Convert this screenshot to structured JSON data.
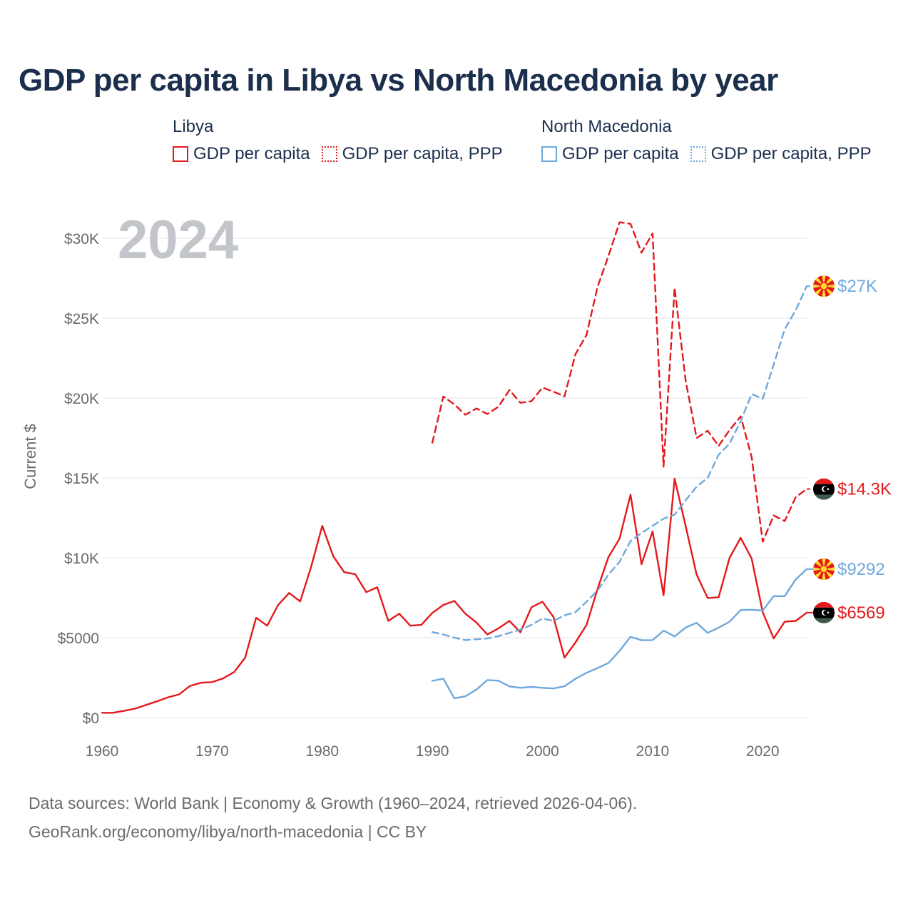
{
  "title": "GDP per capita in Libya vs North Macedonia by year",
  "legend": {
    "groups": [
      {
        "name": "Libya",
        "color": "#e4191c",
        "items": [
          {
            "label": "GDP per capita",
            "style": "solid"
          },
          {
            "label": "GDP per capita, PPP",
            "style": "dotted"
          }
        ]
      },
      {
        "name": "North Macedonia",
        "color": "#6fa8dc",
        "items": [
          {
            "label": "GDP per capita",
            "style": "solid"
          },
          {
            "label": "GDP per capita, PPP",
            "style": "dotted"
          }
        ]
      }
    ]
  },
  "footer": {
    "line1": "Data sources: World Bank | Economy & Growth (1960–2024, retrieved 2026-04-06).",
    "line2": "GeoRank.org/economy/libya/north-macedonia | CC BY"
  },
  "chart_data": {
    "type": "line",
    "title": "GDP per capita in Libya vs North Macedonia by year",
    "year_label": "2024",
    "xlabel": "",
    "ylabel": "Current $",
    "xlim": [
      1960,
      2024
    ],
    "ylim": [
      0,
      30000
    ],
    "x_ticks": [
      1960,
      1970,
      1980,
      1990,
      2000,
      2010,
      2020
    ],
    "x_tick_labels": [
      "1960",
      "1970",
      "1980",
      "1990",
      "2000",
      "2010",
      "2020"
    ],
    "y_ticks": [
      0,
      5000,
      10000,
      15000,
      20000,
      25000,
      30000
    ],
    "y_tick_labels": [
      "$0",
      "$5000",
      "$10K",
      "$15K",
      "$20K",
      "$25K",
      "$30K"
    ],
    "grid": true,
    "series": [
      {
        "name": "Libya GDP per capita",
        "color": "#e4191c",
        "dashed": false,
        "end_label": "$6569",
        "flag": "libya",
        "x": [
          1960,
          1961,
          1962,
          1963,
          1964,
          1965,
          1966,
          1967,
          1968,
          1969,
          1970,
          1971,
          1972,
          1973,
          1974,
          1975,
          1976,
          1977,
          1978,
          1979,
          1980,
          1981,
          1982,
          1983,
          1984,
          1985,
          1986,
          1987,
          1988,
          1989,
          1990,
          1991,
          1992,
          1993,
          1994,
          1995,
          1996,
          1997,
          1998,
          1999,
          2000,
          2001,
          2002,
          2003,
          2004,
          2005,
          2006,
          2007,
          2008,
          2009,
          2010,
          2011,
          2012,
          2013,
          2014,
          2015,
          2016,
          2017,
          2018,
          2019,
          2020,
          2021,
          2022,
          2023,
          2024
        ],
        "values": [
          300,
          300,
          420,
          560,
          790,
          1020,
          1270,
          1450,
          1980,
          2180,
          2220,
          2450,
          2850,
          3750,
          6250,
          5750,
          7050,
          7800,
          7270,
          9450,
          12000,
          10100,
          9100,
          8970,
          7850,
          8150,
          6050,
          6500,
          5750,
          5800,
          6550,
          7050,
          7300,
          6500,
          5950,
          5200,
          5580,
          6050,
          5330,
          6900,
          7250,
          6300,
          3750,
          4700,
          5800,
          8050,
          10050,
          11200,
          13950,
          9600,
          11650,
          7650,
          14950,
          12000,
          8950,
          7480,
          7530,
          10000,
          11250,
          9950,
          6600,
          4950,
          6000,
          6050,
          6569
        ]
      },
      {
        "name": "Libya GDP per capita, PPP",
        "color": "#e4191c",
        "dashed": true,
        "end_label": "$14.3K",
        "flag": "libya",
        "x": [
          1990,
          1991,
          1992,
          1993,
          1994,
          1995,
          1996,
          1997,
          1998,
          1999,
          2000,
          2001,
          2002,
          2003,
          2004,
          2005,
          2006,
          2007,
          2008,
          2009,
          2010,
          2011,
          2012,
          2013,
          2014,
          2015,
          2016,
          2017,
          2018,
          2019,
          2020,
          2021,
          2022,
          2023,
          2024
        ],
        "values": [
          17200,
          20100,
          19600,
          18950,
          19350,
          19000,
          19450,
          20500,
          19700,
          19800,
          20650,
          20400,
          20100,
          22750,
          23950,
          26950,
          28900,
          31000,
          30900,
          29100,
          30300,
          15700,
          26900,
          21100,
          17500,
          17950,
          17000,
          18000,
          18850,
          16300,
          11000,
          12650,
          12300,
          13800,
          14300
        ]
      },
      {
        "name": "North Macedonia GDP per capita",
        "color": "#6fa8dc",
        "dashed": false,
        "end_label": "$9292",
        "flag": "north-macedonia",
        "x": [
          1990,
          1991,
          1992,
          1993,
          1994,
          1995,
          1996,
          1997,
          1998,
          1999,
          2000,
          2001,
          2002,
          2003,
          2004,
          2005,
          2006,
          2007,
          2008,
          2009,
          2010,
          2011,
          2012,
          2013,
          2014,
          2015,
          2016,
          2017,
          2018,
          2019,
          2020,
          2021,
          2022,
          2023,
          2024
        ],
        "values": [
          2300,
          2430,
          1200,
          1330,
          1750,
          2350,
          2310,
          1950,
          1860,
          1920,
          1860,
          1820,
          1960,
          2430,
          2800,
          3100,
          3420,
          4180,
          5050,
          4840,
          4850,
          5440,
          5080,
          5630,
          5930,
          5300,
          5630,
          6000,
          6730,
          6750,
          6700,
          7600,
          7600,
          8650,
          9292
        ]
      },
      {
        "name": "North Macedonia GDP per capita, PPP",
        "color": "#6fa8dc",
        "dashed": true,
        "end_label": "$27K",
        "flag": "north-macedonia",
        "x": [
          1990,
          1991,
          1992,
          1993,
          1994,
          1995,
          1996,
          1997,
          1998,
          1999,
          2000,
          2001,
          2002,
          2003,
          2004,
          2005,
          2006,
          2007,
          2008,
          2009,
          2010,
          2011,
          2012,
          2013,
          2014,
          2015,
          2016,
          2017,
          2018,
          2019,
          2020,
          2021,
          2022,
          2023,
          2024
        ],
        "values": [
          5350,
          5200,
          5000,
          4850,
          4900,
          4950,
          5100,
          5300,
          5500,
          5800,
          6200,
          6050,
          6400,
          6600,
          7250,
          7950,
          8950,
          9750,
          11050,
          11550,
          12000,
          12450,
          12700,
          13600,
          14450,
          15000,
          16450,
          17150,
          18550,
          20250,
          19950,
          22100,
          24300,
          25500,
          27000
        ]
      }
    ]
  }
}
